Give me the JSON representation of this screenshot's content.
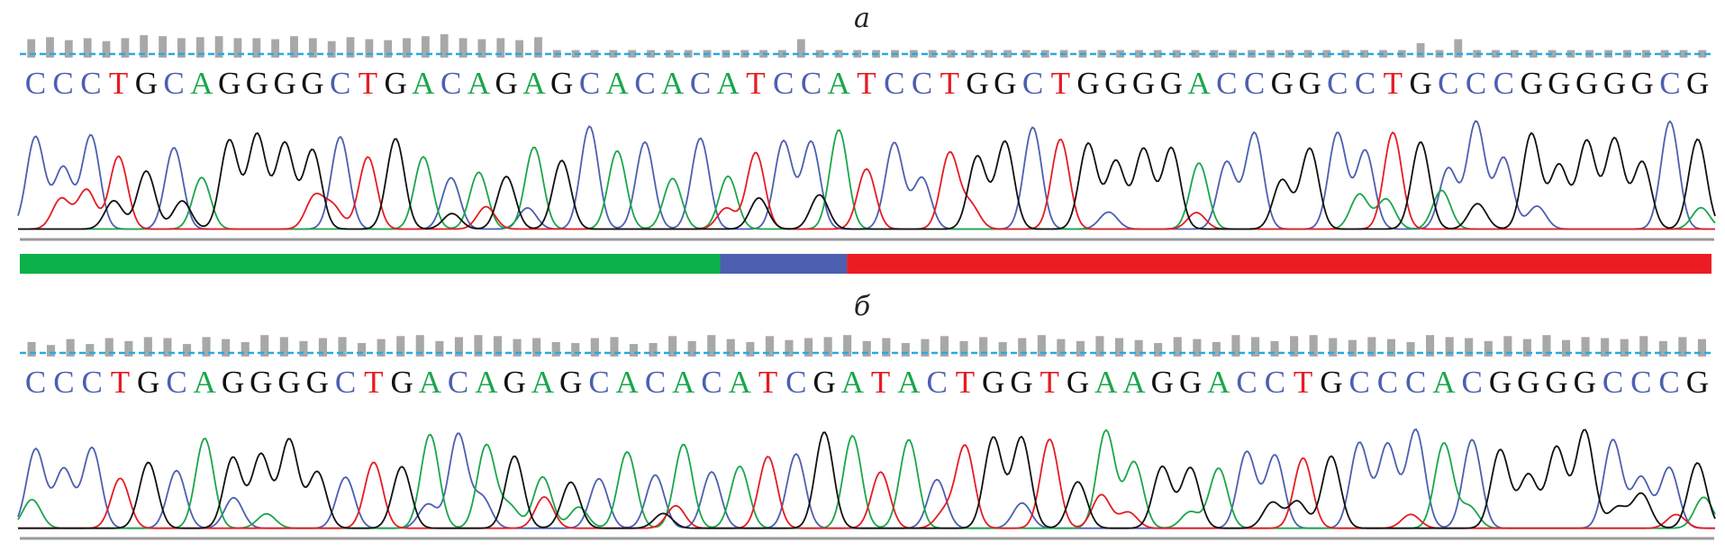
{
  "colors": {
    "A": "#1aa64b",
    "C": "#4c5fb0",
    "G": "#111111",
    "T": "#e51c23",
    "quality_bar": "#a8a8a8",
    "quality_line": "#29a9e1",
    "baseline": "#9a9a9a"
  },
  "panels": [
    {
      "label": "а",
      "sequence": "CCCTGCAGGGGCTGACAGAGCACACATCCATCCTGGCTGGGGACCGGCCTGCCCGGGGGCG",
      "quality_levels": [
        0.75,
        0.85,
        0.7,
        0.8,
        0.65,
        0.8,
        0.95,
        0.9,
        0.8,
        0.85,
        0.9,
        0.8,
        0.8,
        0.75,
        0.9,
        0.8,
        0.65,
        0.85,
        0.75,
        0.7,
        0.8,
        0.9,
        1.0,
        0.8,
        0.75,
        0.8,
        0.7,
        0.85,
        0.2,
        0.2,
        0.2,
        0.2,
        0.2,
        0.2,
        0.2,
        0.2,
        0.2,
        0.2,
        0.2,
        0.2,
        0.2,
        0.75,
        0.2,
        0.2,
        0.2,
        0.2,
        0.2,
        0.2,
        0.2,
        0.2,
        0.2,
        0.2,
        0.2,
        0.2,
        0.2,
        0.2,
        0.2,
        0.2,
        0.2,
        0.2,
        0.2,
        0.2,
        0.2,
        0.2,
        0.2,
        0.2,
        0.2,
        0.2,
        0.2,
        0.2,
        0.2,
        0.2,
        0.2,
        0.2,
        0.55,
        0.2,
        0.75,
        0.2,
        0.2,
        0.2,
        0.2,
        0.2,
        0.2,
        0.2,
        0.2,
        0.2,
        0.2,
        0.2,
        0.2,
        0.2
      ],
      "quality_strip": [
        {
          "color": "#0db14b",
          "start": 0.0,
          "end": 0.414
        },
        {
          "color": "#4c5fb0",
          "start": 0.414,
          "end": 0.489
        },
        {
          "color": "#ed1c24",
          "start": 0.489,
          "end": 1.0
        }
      ]
    },
    {
      "label": "б",
      "sequence": "CCCTGCAGGGGCTGACAGAGCACACATCGATACTGGTGAAGGACCTGCCCACGGGGCCCG",
      "quality_levels": [
        0.55,
        0.4,
        0.7,
        0.45,
        0.75,
        0.6,
        0.8,
        0.75,
        0.45,
        0.8,
        0.7,
        0.55,
        0.9,
        0.8,
        0.6,
        0.75,
        0.8,
        0.5,
        0.7,
        0.85,
        0.9,
        0.6,
        0.8,
        0.9,
        0.85,
        0.7,
        0.75,
        0.55,
        0.5,
        0.75,
        0.8,
        0.45,
        0.5,
        0.85,
        0.6,
        0.9,
        0.7,
        0.55,
        0.85,
        0.65,
        0.75,
        0.8,
        0.9,
        0.6,
        0.75,
        0.5,
        0.7,
        0.85,
        0.6,
        0.8,
        0.55,
        0.75,
        0.9,
        0.7,
        0.6,
        0.85,
        0.75,
        0.65,
        0.5,
        0.8,
        0.7,
        0.55,
        0.9,
        0.8,
        0.6,
        0.85,
        0.9,
        0.75,
        0.65,
        0.8,
        0.7,
        0.55,
        0.9,
        0.8,
        0.75,
        0.6,
        0.85,
        0.7,
        0.9,
        0.65,
        0.8,
        0.75,
        0.7,
        0.85,
        0.6,
        0.8,
        0.7
      ],
      "quality_strip": []
    }
  ]
}
